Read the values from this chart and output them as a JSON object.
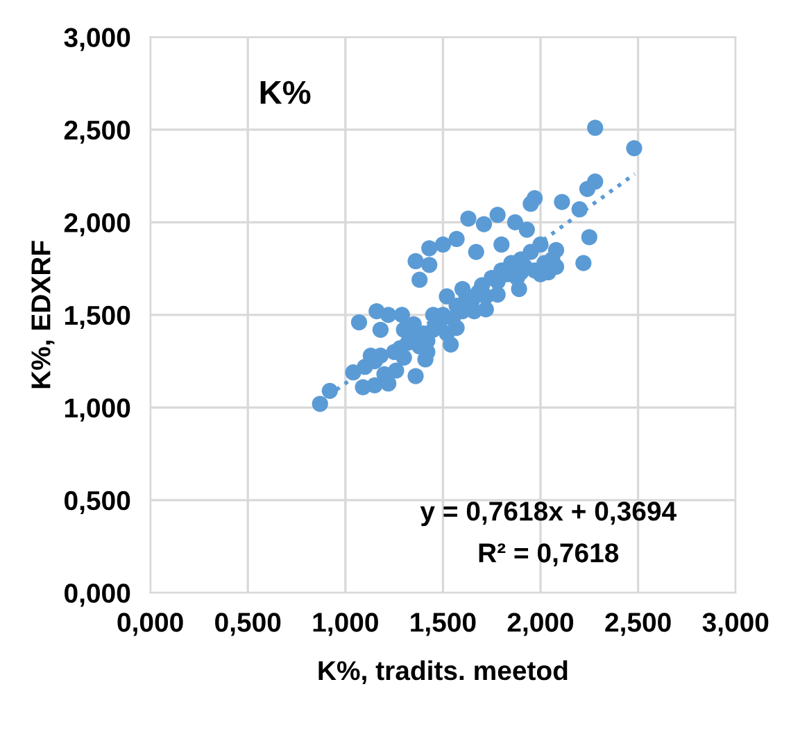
{
  "chart_data": {
    "type": "scatter",
    "title": "K%",
    "xlabel": "K%, tradits. meetod",
    "ylabel": "K%, EDXRF",
    "xlim": [
      0,
      3
    ],
    "ylim": [
      0,
      3
    ],
    "xticks": [
      {
        "value": 0,
        "label": "0,000"
      },
      {
        "value": 0.5,
        "label": "0,500"
      },
      {
        "value": 1,
        "label": "1,000"
      },
      {
        "value": 1.5,
        "label": "1,500"
      },
      {
        "value": 2,
        "label": "2,000"
      },
      {
        "value": 2.5,
        "label": "2,500"
      },
      {
        "value": 3,
        "label": "3,000"
      }
    ],
    "yticks": [
      {
        "value": 0,
        "label": "0,000"
      },
      {
        "value": 0.5,
        "label": "0,500"
      },
      {
        "value": 1,
        "label": "1,000"
      },
      {
        "value": 1.5,
        "label": "1,500"
      },
      {
        "value": 2,
        "label": "2,000"
      },
      {
        "value": 2.5,
        "label": "2,500"
      },
      {
        "value": 3,
        "label": "3,000"
      }
    ],
    "grid": true,
    "marker": "circle",
    "annotations": [
      "y = 0,7618x + 0,3694",
      "R² = 0,7618"
    ],
    "series": [
      {
        "color": "#5b9bd5",
        "x": [
          0.87,
          0.92,
          1.07,
          1.04,
          1.09,
          1.16,
          1.18,
          1.22,
          1.22,
          1.29,
          1.36,
          1.38,
          1.36,
          1.43,
          1.43,
          1.5,
          1.57,
          1.63,
          1.71,
          1.67,
          1.78,
          1.8,
          1.87,
          1.93,
          1.95,
          1.97,
          2.11,
          2.2,
          2.24,
          2.28,
          2.28,
          2.48,
          2.25,
          2.22,
          2.04,
          2.0,
          2.08,
          2.0,
          1.9,
          1.89,
          1.78,
          1.72,
          1.54,
          1.41,
          1.15,
          1.1,
          1.15,
          1.18,
          1.25,
          1.28,
          1.3,
          1.32,
          1.35,
          1.38,
          1.4,
          1.42,
          1.45,
          1.48,
          1.5,
          1.52,
          1.55,
          1.57,
          1.6,
          1.62,
          1.65,
          1.68,
          1.7,
          1.72,
          1.75,
          1.78,
          1.8,
          1.83,
          1.85,
          1.88,
          1.9,
          1.92,
          1.95,
          1.97,
          2.02,
          2.06,
          2.08,
          1.52,
          1.45,
          1.35,
          1.6,
          1.57,
          1.42,
          1.3,
          1.13,
          1.2,
          1.26,
          1.66
        ],
        "values": [
          1.02,
          1.09,
          1.46,
          1.19,
          1.11,
          1.52,
          1.42,
          1.5,
          1.13,
          1.5,
          1.79,
          1.69,
          1.17,
          1.86,
          1.77,
          1.88,
          1.91,
          2.02,
          1.99,
          1.84,
          2.04,
          1.88,
          2.0,
          1.96,
          2.1,
          2.13,
          2.11,
          2.07,
          2.18,
          2.22,
          2.51,
          2.4,
          1.92,
          1.78,
          1.73,
          1.72,
          1.85,
          1.88,
          1.73,
          1.64,
          1.61,
          1.53,
          1.34,
          1.26,
          1.12,
          1.22,
          1.25,
          1.28,
          1.3,
          1.32,
          1.27,
          1.35,
          1.38,
          1.33,
          1.4,
          1.36,
          1.42,
          1.45,
          1.5,
          1.4,
          1.48,
          1.55,
          1.52,
          1.6,
          1.58,
          1.62,
          1.66,
          1.6,
          1.7,
          1.68,
          1.74,
          1.72,
          1.78,
          1.7,
          1.8,
          1.76,
          1.84,
          1.74,
          1.78,
          1.8,
          1.76,
          1.6,
          1.5,
          1.45,
          1.64,
          1.43,
          1.3,
          1.42,
          1.28,
          1.18,
          1.2,
          1.52
        ]
      },
      {
        "type": "line",
        "color": "#5b9bd5",
        "line_style": "dotted",
        "marker": "none",
        "x": [
          0.869,
          2.483
        ],
        "values": [
          1.031,
          2.261
        ]
      }
    ]
  }
}
